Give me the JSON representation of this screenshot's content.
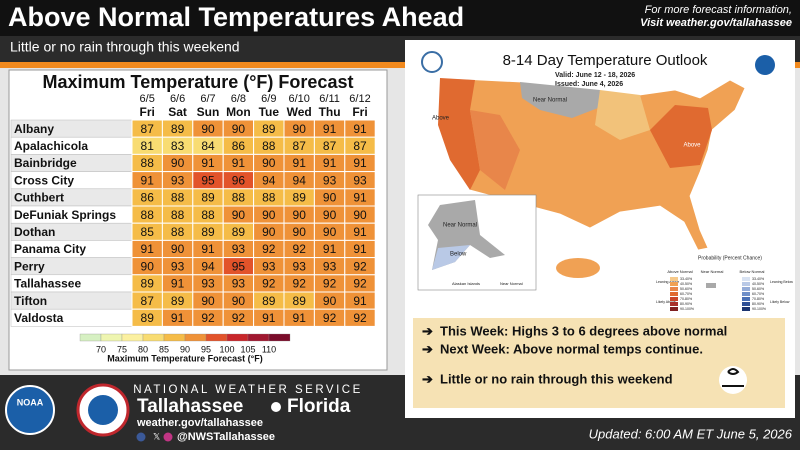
{
  "header": {
    "title": "Above Normal Temperatures Ahead",
    "subtitle": "Little or no rain through this weekend",
    "info": [
      "For more forecast information,",
      "Visit weather.gov/tallahassee"
    ]
  },
  "table": {
    "title": "Maximum Temperature (°F) Forecast",
    "dates": [
      "6/5",
      "6/6",
      "6/7",
      "6/8",
      "6/9",
      "6/10",
      "6/11",
      "6/12"
    ],
    "days": [
      "Fri",
      "Sat",
      "Sun",
      "Mon",
      "Tue",
      "Wed",
      "Thu",
      "Fri"
    ],
    "rows": [
      {
        "city": "Albany",
        "values": [
          87,
          89,
          90,
          90,
          89,
          90,
          91,
          91
        ]
      },
      {
        "city": "Apalachicola",
        "values": [
          81,
          83,
          84,
          86,
          88,
          87,
          87,
          87
        ]
      },
      {
        "city": "Bainbridge",
        "values": [
          88,
          90,
          91,
          91,
          90,
          91,
          91,
          91
        ]
      },
      {
        "city": "Cross City",
        "values": [
          91,
          93,
          95,
          96,
          94,
          94,
          93,
          93
        ]
      },
      {
        "city": "Cuthbert",
        "values": [
          86,
          88,
          89,
          88,
          88,
          89,
          90,
          91
        ]
      },
      {
        "city": "DeFuniak Springs",
        "values": [
          88,
          88,
          88,
          90,
          90,
          90,
          90,
          90
        ]
      },
      {
        "city": "Dothan",
        "values": [
          85,
          88,
          89,
          89,
          90,
          90,
          90,
          91
        ]
      },
      {
        "city": "Panama City",
        "values": [
          91,
          90,
          91,
          93,
          92,
          92,
          91,
          91
        ]
      },
      {
        "city": "Perry",
        "values": [
          90,
          93,
          94,
          95,
          93,
          93,
          93,
          92
        ]
      },
      {
        "city": "Tallahassee",
        "values": [
          89,
          91,
          93,
          93,
          92,
          92,
          92,
          92
        ]
      },
      {
        "city": "Tifton",
        "values": [
          87,
          89,
          90,
          90,
          89,
          89,
          90,
          91
        ]
      },
      {
        "city": "Valdosta",
        "values": [
          89,
          91,
          92,
          92,
          91,
          91,
          92,
          92
        ]
      }
    ],
    "legend": {
      "title": "Maximum Temperature Forecast (°F)",
      "ticks": [
        70,
        75,
        80,
        85,
        90,
        95,
        100,
        105,
        110
      ],
      "colors": [
        "#d6f0c2",
        "#eef5b0",
        "#fbf0a0",
        "#f8dc72",
        "#f5bc48",
        "#ef9238",
        "#e2532a",
        "#c8262a",
        "#a01830",
        "#7a0c2a"
      ]
    }
  },
  "map": {
    "title": "8-14 Day Temperature Outlook",
    "valid": "Valid:  June 12 - 18, 2026",
    "issued": "Issued:  June 4, 2026",
    "labels": [
      "Above",
      "Near Normal",
      "Above",
      "Near Normal",
      "Below",
      "Alaskan Islands",
      "Near Normal"
    ],
    "legend_title": "Probability (Percent Chance)",
    "above": "Above Normal",
    "near": "Near Normal",
    "below": "Below Normal",
    "ranges": [
      "33-40%",
      "40-50%",
      "50-60%",
      "60-70%",
      "70-80%",
      "80-90%",
      "90-100%"
    ],
    "leaning_above": "Leaning Above",
    "likely_above": "Likely Above",
    "leaning_below": "Leaning Below",
    "likely_below": "Likely Below"
  },
  "bullets": [
    "This Week: Highs 3 to 6 degrees above normal",
    "Next Week: Above normal temps continue.",
    "Little or no rain through this weekend"
  ],
  "footer": {
    "agency": "NATIONAL WEATHER SERVICE",
    "city": "Tallahassee",
    "state": "Florida",
    "web": "weather.gov/tallahassee",
    "social": "@NWSTallahassee",
    "updated": "Updated: 6:00 AM ET June 5, 2026",
    "logo": "NOAA"
  }
}
